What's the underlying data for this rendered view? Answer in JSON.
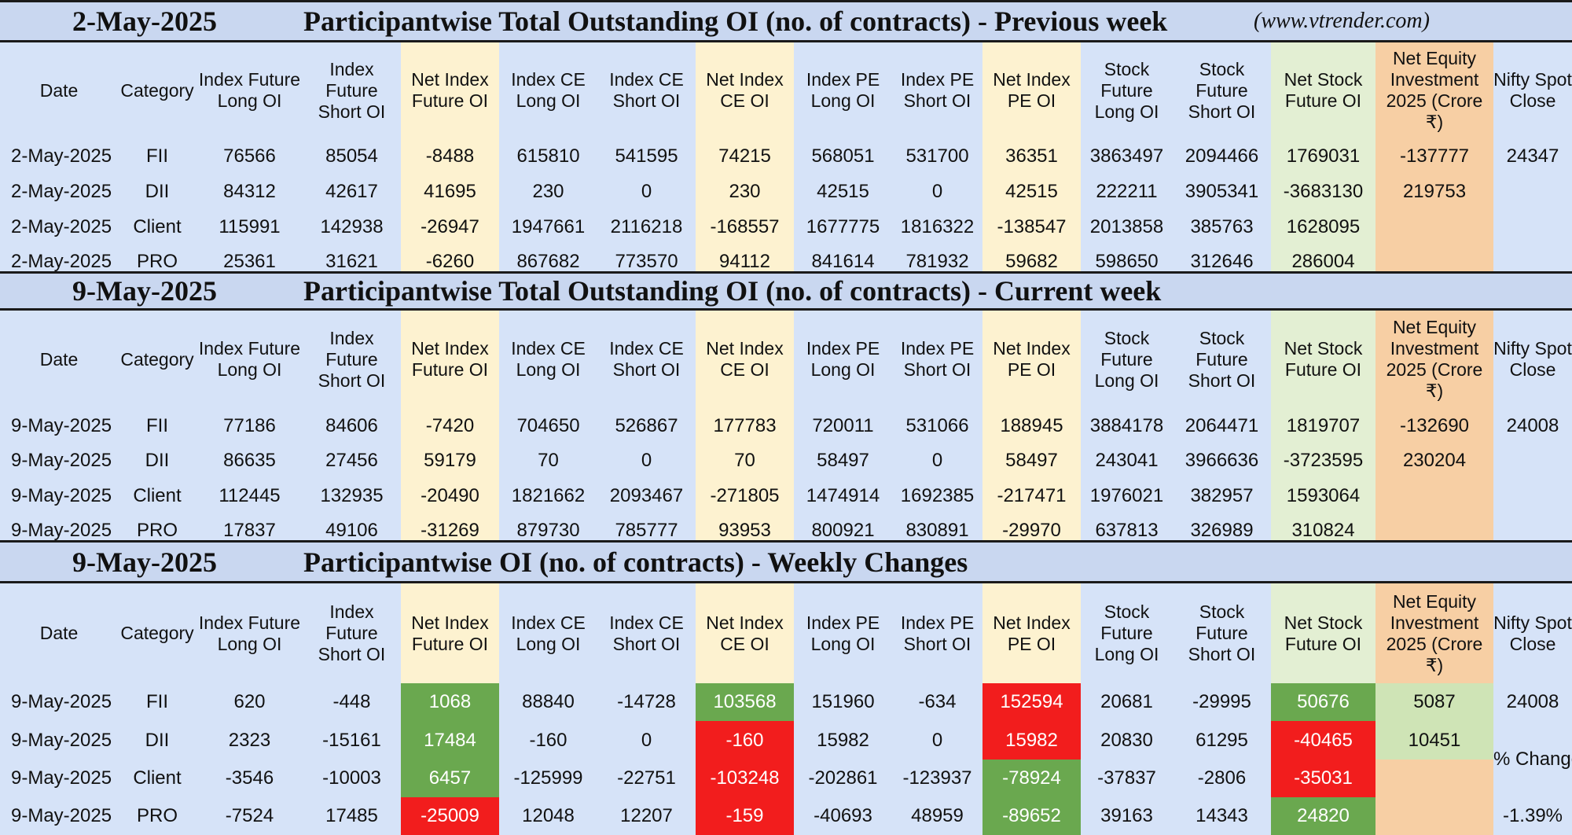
{
  "headers": {
    "date": "Date",
    "category": "Category",
    "cols": [
      "Index Future Long OI",
      "Index Future Short OI",
      "Net Index Future OI",
      "Index CE Long OI",
      "Index CE Short OI",
      "Net Index CE OI",
      "Index PE Long OI",
      "Index PE Short OI",
      "Net Index PE OI",
      "Stock Future Long OI",
      "Stock Future Short OI",
      "Net Stock Future OI",
      "Net Equity Investment 2025 (Crore ₹)",
      "Nifty Spot Close"
    ]
  },
  "sections": [
    {
      "date": "2-May-2025",
      "title": "Participantwise Total Outstanding OI (no. of contracts) - Previous week",
      "site": "(www.vtrender.com)",
      "nifty": "24347",
      "rows": [
        {
          "date": "2-May-2025",
          "category": "FII",
          "values": [
            "76566",
            "85054",
            "-8488",
            "615810",
            "541595",
            "74215",
            "568051",
            "531700",
            "36351",
            "3863497",
            "2094466",
            "1769031",
            "-137777"
          ]
        },
        {
          "date": "2-May-2025",
          "category": "DII",
          "values": [
            "84312",
            "42617",
            "41695",
            "230",
            "0",
            "230",
            "42515",
            "0",
            "42515",
            "222211",
            "3905341",
            "-3683130",
            "219753"
          ]
        },
        {
          "date": "2-May-2025",
          "category": "Client",
          "values": [
            "115991",
            "142938",
            "-26947",
            "1947661",
            "2116218",
            "-168557",
            "1677775",
            "1816322",
            "-138547",
            "2013858",
            "385763",
            "1628095",
            ""
          ]
        },
        {
          "date": "2-May-2025",
          "category": "PRO",
          "values": [
            "25361",
            "31621",
            "-6260",
            "867682",
            "773570",
            "94112",
            "841614",
            "781932",
            "59682",
            "598650",
            "312646",
            "286004",
            ""
          ]
        }
      ]
    },
    {
      "date": "9-May-2025",
      "title": "Participantwise Total Outstanding OI (no. of contracts) - Current week",
      "site": "",
      "nifty": "24008",
      "rows": [
        {
          "date": "9-May-2025",
          "category": "FII",
          "values": [
            "77186",
            "84606",
            "-7420",
            "704650",
            "526867",
            "177783",
            "720011",
            "531066",
            "188945",
            "3884178",
            "2064471",
            "1819707",
            "-132690"
          ]
        },
        {
          "date": "9-May-2025",
          "category": "DII",
          "values": [
            "86635",
            "27456",
            "59179",
            "70",
            "0",
            "70",
            "58497",
            "0",
            "58497",
            "243041",
            "3966636",
            "-3723595",
            "230204"
          ]
        },
        {
          "date": "9-May-2025",
          "category": "Client",
          "values": [
            "112445",
            "132935",
            "-20490",
            "1821662",
            "2093467",
            "-271805",
            "1474914",
            "1692385",
            "-217471",
            "1976021",
            "382957",
            "1593064",
            ""
          ]
        },
        {
          "date": "9-May-2025",
          "category": "PRO",
          "values": [
            "17837",
            "49106",
            "-31269",
            "879730",
            "785777",
            "93953",
            "800921",
            "830891",
            "-29970",
            "637813",
            "326989",
            "310824",
            ""
          ]
        }
      ]
    },
    {
      "date": "9-May-2025",
      "title": "Participantwise OI (no. of contracts) - Weekly Changes",
      "site": "",
      "nifty": "24008",
      "pct_label": "% Change",
      "pct_value": "-1.39%",
      "rows": [
        {
          "date": "9-May-2025",
          "category": "FII",
          "values": [
            "620",
            "-448",
            "1068",
            "88840",
            "-14728",
            "103568",
            "151960",
            "-634",
            "152594",
            "20681",
            "-29995",
            "50676",
            "5087"
          ]
        },
        {
          "date": "9-May-2025",
          "category": "DII",
          "values": [
            "2323",
            "-15161",
            "17484",
            "-160",
            "0",
            "-160",
            "15982",
            "0",
            "15982",
            "20830",
            "61295",
            "-40465",
            "10451"
          ]
        },
        {
          "date": "9-May-2025",
          "category": "Client",
          "values": [
            "-3546",
            "-10003",
            "6457",
            "-125999",
            "-22751",
            "-103248",
            "-202861",
            "-123937",
            "-78924",
            "-37837",
            "-2806",
            "-35031",
            ""
          ]
        },
        {
          "date": "9-May-2025",
          "category": "PRO",
          "values": [
            "-7524",
            "17485",
            "-25009",
            "12048",
            "12207",
            "-159",
            "-40693",
            "48959",
            "-89652",
            "39163",
            "14343",
            "24820",
            ""
          ]
        }
      ]
    }
  ],
  "colors": {
    "title_bg": "#c9d7f0",
    "header_bg": "#d6e3f8",
    "net_col_bg": "#fdf2d0",
    "net_stock_bg": "#e3efd3",
    "equity_bg": "#f7cfa4",
    "negative": "#e8262a",
    "positive": "#3b8a2a",
    "fill_green": "#6aa84f",
    "fill_red": "#f21d1d"
  }
}
